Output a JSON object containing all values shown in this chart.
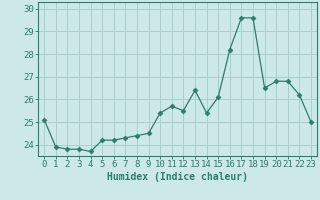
{
  "x": [
    0,
    1,
    2,
    3,
    4,
    5,
    6,
    7,
    8,
    9,
    10,
    11,
    12,
    13,
    14,
    15,
    16,
    17,
    18,
    19,
    20,
    21,
    22,
    23
  ],
  "y": [
    25.1,
    23.9,
    23.8,
    23.8,
    23.7,
    24.2,
    24.2,
    24.3,
    24.4,
    24.5,
    25.4,
    25.7,
    25.5,
    26.4,
    25.4,
    26.1,
    28.2,
    29.6,
    29.6,
    26.5,
    26.8,
    26.8,
    26.2,
    25.0
  ],
  "xlabel": "Humidex (Indice chaleur)",
  "ylim": [
    23.5,
    30.3
  ],
  "xlim": [
    -0.5,
    23.5
  ],
  "yticks": [
    24,
    25,
    26,
    27,
    28,
    29,
    30
  ],
  "xticks": [
    0,
    1,
    2,
    3,
    4,
    5,
    6,
    7,
    8,
    9,
    10,
    11,
    12,
    13,
    14,
    15,
    16,
    17,
    18,
    19,
    20,
    21,
    22,
    23
  ],
  "line_color": "#2d7d6e",
  "marker": "D",
  "marker_size": 2.5,
  "bg_color": "#cce8e8",
  "grid_color": "#aacfcf",
  "axis_color": "#2d7d6e",
  "tick_label_color": "#2d7d6e",
  "xlabel_color": "#2d7d6e",
  "xlabel_fontsize": 7,
  "tick_fontsize": 6.5
}
